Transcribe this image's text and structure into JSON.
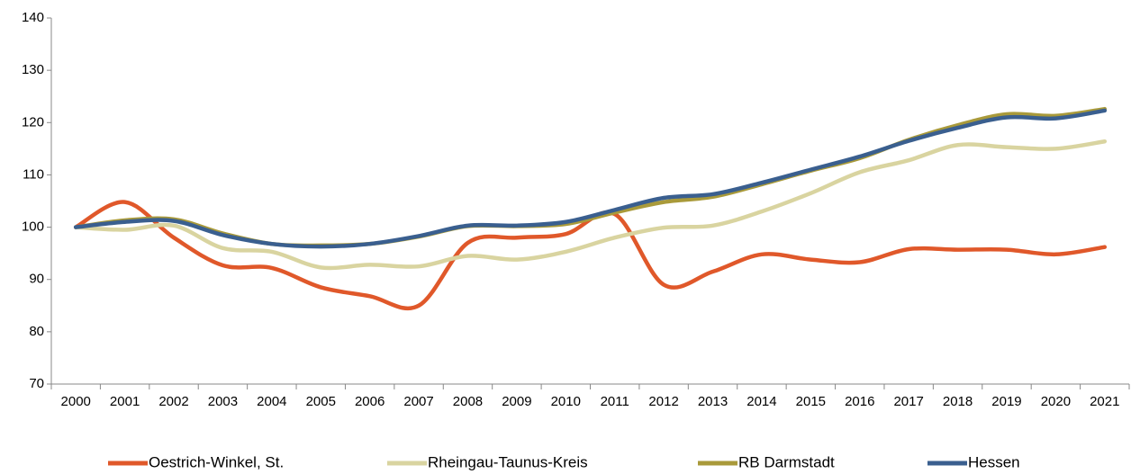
{
  "chart_data": {
    "type": "line",
    "categories": [
      "2000",
      "2001",
      "2002",
      "2003",
      "2004",
      "2005",
      "2006",
      "2007",
      "2008",
      "2009",
      "2010",
      "2011",
      "2012",
      "2013",
      "2014",
      "2015",
      "2016",
      "2017",
      "2018",
      "2019",
      "2020",
      "2021"
    ],
    "series": [
      {
        "name": "Oestrich-Winkel, St.",
        "color": "#e0582a",
        "values": [
          100,
          104.8,
          98,
          92.7,
          92.2,
          88.5,
          86.8,
          85,
          97,
          98,
          98.7,
          102.5,
          89,
          91.5,
          94.8,
          93.8,
          93.3,
          95.8,
          95.7,
          95.7,
          94.8,
          96.2
        ]
      },
      {
        "name": "Rheingau-Taunus-Kreis",
        "color": "#d9d4a0",
        "values": [
          100,
          99.5,
          100.3,
          96,
          95.3,
          92.3,
          92.8,
          92.5,
          94.5,
          93.8,
          95.3,
          98,
          99.9,
          100.3,
          103,
          106.5,
          110.5,
          112.8,
          115.7,
          115.3,
          115,
          116.4
        ]
      },
      {
        "name": "RB Darmstadt",
        "color": "#a99a3a",
        "values": [
          100,
          101.3,
          101.5,
          98.8,
          96.8,
          96.5,
          96.8,
          98.2,
          100.2,
          100.2,
          100.6,
          102.8,
          104.8,
          105.8,
          108.2,
          110.8,
          113.2,
          116.7,
          119.5,
          121.6,
          121.3,
          122.6
        ]
      },
      {
        "name": "Hessen",
        "color": "#3a5f8f",
        "values": [
          100,
          101,
          101.2,
          98.5,
          96.8,
          96.3,
          96.8,
          98.3,
          100.3,
          100.3,
          101,
          103.3,
          105.6,
          106.3,
          108.5,
          111,
          113.5,
          116.5,
          119,
          121,
          120.8,
          122.3
        ]
      }
    ],
    "ylim": [
      70,
      140
    ],
    "yticks": [
      70,
      80,
      90,
      100,
      110,
      120,
      130,
      140
    ],
    "grid": false,
    "legend": "bottom"
  }
}
